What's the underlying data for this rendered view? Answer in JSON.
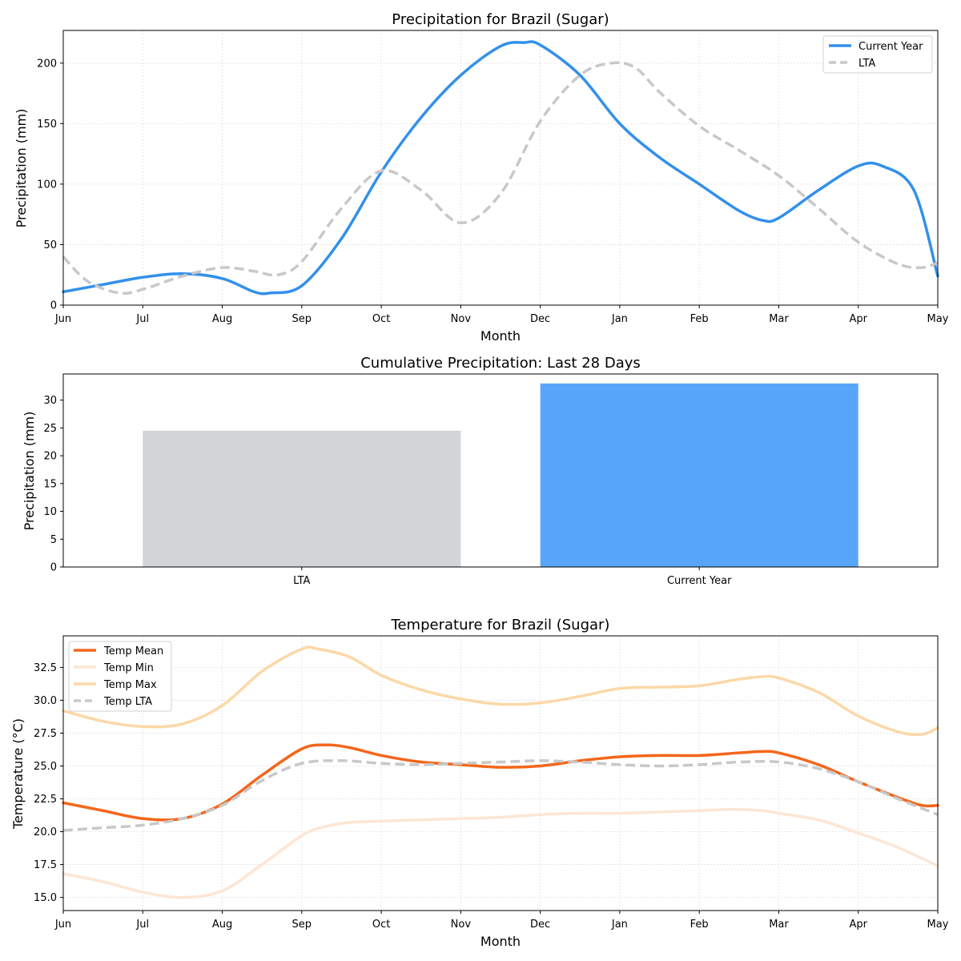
{
  "chart_data": [
    {
      "type": "line",
      "title": "Precipitation for Brazil (Sugar)",
      "xlabel": "Month",
      "ylabel": "Precipitation (mm)",
      "x_ticks": [
        "Jun",
        "Jul",
        "Aug",
        "Sep",
        "Oct",
        "Nov",
        "Dec",
        "Jan",
        "Feb",
        "Mar",
        "Apr",
        "May"
      ],
      "ylim": [
        0,
        227
      ],
      "yticks": [
        0,
        50,
        100,
        150,
        200
      ],
      "grid": true,
      "legend_position": "top-right",
      "series": [
        {
          "name": "Current Year",
          "color": "#3390ea",
          "style": "solid",
          "points": [
            [
              0,
              11
            ],
            [
              0.5,
              17
            ],
            [
              1,
              23
            ],
            [
              1.5,
              26
            ],
            [
              2,
              22
            ],
            [
              2.4,
              11
            ],
            [
              2.6,
              10
            ],
            [
              3,
              16
            ],
            [
              3.5,
              55
            ],
            [
              4,
              110
            ],
            [
              4.5,
              155
            ],
            [
              5,
              190
            ],
            [
              5.5,
              214
            ],
            [
              5.8,
              217
            ],
            [
              6,
              215
            ],
            [
              6.5,
              190
            ],
            [
              7,
              150
            ],
            [
              7.5,
              122
            ],
            [
              8,
              100
            ],
            [
              8.5,
              78
            ],
            [
              8.8,
              70
            ],
            [
              9,
              72
            ],
            [
              9.5,
              95
            ],
            [
              10,
              115
            ],
            [
              10.3,
              115
            ],
            [
              10.7,
              95
            ],
            [
              11,
              24
            ]
          ]
        },
        {
          "name": "LTA",
          "color": "#c8c8c8",
          "style": "dashed",
          "points": [
            [
              0,
              40
            ],
            [
              0.3,
              20
            ],
            [
              0.7,
              10
            ],
            [
              1,
              13
            ],
            [
              1.5,
              24
            ],
            [
              2,
              31
            ],
            [
              2.4,
              28
            ],
            [
              2.7,
              25
            ],
            [
              3,
              36
            ],
            [
              3.5,
              80
            ],
            [
              4,
              111
            ],
            [
              4.5,
              95
            ],
            [
              5,
              68
            ],
            [
              5.5,
              92
            ],
            [
              6,
              152
            ],
            [
              6.5,
              190
            ],
            [
              6.9,
              200
            ],
            [
              7.2,
              196
            ],
            [
              7.5,
              176
            ],
            [
              8,
              148
            ],
            [
              8.5,
              128
            ],
            [
              9,
              107
            ],
            [
              9.5,
              80
            ],
            [
              10,
              52
            ],
            [
              10.5,
              34
            ],
            [
              10.8,
              31
            ],
            [
              11,
              35
            ]
          ]
        }
      ]
    },
    {
      "type": "bar",
      "title": "Cumulative Precipitation: Last 28 Days",
      "xlabel": "",
      "ylabel": "Precipitation (mm)",
      "categories": [
        "LTA",
        "Current Year"
      ],
      "values": [
        24.5,
        33.0
      ],
      "colors": [
        "#d1d5d8",
        "#58a6fa"
      ],
      "ylim": [
        0,
        34.7
      ],
      "yticks": [
        0,
        5,
        10,
        15,
        20,
        25,
        30
      ],
      "grid": false
    },
    {
      "type": "line",
      "title": "Temperature for Brazil (Sugar)",
      "xlabel": "Month",
      "ylabel": "Temperature (°C)",
      "x_ticks": [
        "Jun",
        "Jul",
        "Aug",
        "Sep",
        "Oct",
        "Nov",
        "Dec",
        "Jan",
        "Feb",
        "Mar",
        "Apr",
        "May"
      ],
      "ylim": [
        14.0,
        34.9
      ],
      "yticks": [
        15.0,
        17.5,
        20.0,
        22.5,
        25.0,
        27.5,
        30.0,
        32.5
      ],
      "ytick_labels": [
        "15.0",
        "17.5",
        "20.0",
        "22.5",
        "25.0",
        "27.5",
        "30.0",
        "32.5"
      ],
      "grid": true,
      "legend_position": "top-left",
      "series": [
        {
          "name": "Temp Mean",
          "color": "#f4661b",
          "style": "solid",
          "points": [
            [
              0,
              22.2
            ],
            [
              0.5,
              21.6
            ],
            [
              1,
              21.0
            ],
            [
              1.5,
              21.0
            ],
            [
              2,
              22.1
            ],
            [
              2.5,
              24.3
            ],
            [
              3,
              26.3
            ],
            [
              3.3,
              26.6
            ],
            [
              3.6,
              26.4
            ],
            [
              4,
              25.8
            ],
            [
              4.5,
              25.3
            ],
            [
              5,
              25.1
            ],
            [
              5.5,
              24.9
            ],
            [
              6,
              25.0
            ],
            [
              6.5,
              25.4
            ],
            [
              7,
              25.7
            ],
            [
              7.5,
              25.8
            ],
            [
              8,
              25.8
            ],
            [
              8.5,
              26.0
            ],
            [
              8.8,
              26.1
            ],
            [
              9,
              26.0
            ],
            [
              9.5,
              25.1
            ],
            [
              10,
              23.8
            ],
            [
              10.5,
              22.6
            ],
            [
              10.8,
              22.0
            ],
            [
              11,
              22.0
            ]
          ]
        },
        {
          "name": "Temp Min",
          "color": "#fde6d3",
          "style": "solid",
          "points": [
            [
              0,
              16.8
            ],
            [
              0.5,
              16.2
            ],
            [
              1,
              15.4
            ],
            [
              1.5,
              15.0
            ],
            [
              2,
              15.5
            ],
            [
              2.5,
              17.5
            ],
            [
              3,
              19.7
            ],
            [
              3.3,
              20.4
            ],
            [
              3.6,
              20.7
            ],
            [
              4,
              20.8
            ],
            [
              4.5,
              20.9
            ],
            [
              5,
              21.0
            ],
            [
              5.5,
              21.1
            ],
            [
              6,
              21.3
            ],
            [
              6.5,
              21.4
            ],
            [
              7,
              21.4
            ],
            [
              7.5,
              21.5
            ],
            [
              8,
              21.6
            ],
            [
              8.4,
              21.7
            ],
            [
              8.8,
              21.6
            ],
            [
              9,
              21.4
            ],
            [
              9.5,
              20.9
            ],
            [
              10,
              19.9
            ],
            [
              10.5,
              18.8
            ],
            [
              11,
              17.4
            ]
          ]
        },
        {
          "name": "Temp Max",
          "color": "#fcd8a7",
          "style": "solid",
          "points": [
            [
              0,
              29.2
            ],
            [
              0.5,
              28.4
            ],
            [
              1,
              28.0
            ],
            [
              1.5,
              28.2
            ],
            [
              2,
              29.6
            ],
            [
              2.5,
              32.2
            ],
            [
              3,
              33.9
            ],
            [
              3.2,
              33.9
            ],
            [
              3.6,
              33.3
            ],
            [
              4,
              31.9
            ],
            [
              4.5,
              30.8
            ],
            [
              5,
              30.1
            ],
            [
              5.5,
              29.7
            ],
            [
              6,
              29.8
            ],
            [
              6.5,
              30.3
            ],
            [
              7,
              30.9
            ],
            [
              7.5,
              31.0
            ],
            [
              8,
              31.1
            ],
            [
              8.5,
              31.6
            ],
            [
              8.8,
              31.8
            ],
            [
              9,
              31.7
            ],
            [
              9.5,
              30.6
            ],
            [
              10,
              28.8
            ],
            [
              10.5,
              27.6
            ],
            [
              10.8,
              27.4
            ],
            [
              11,
              27.9
            ]
          ]
        },
        {
          "name": "Temp LTA",
          "color": "#c8c8c8",
          "style": "dashed",
          "points": [
            [
              0,
              20.1
            ],
            [
              0.5,
              20.3
            ],
            [
              1,
              20.5
            ],
            [
              1.5,
              21.0
            ],
            [
              2,
              22.0
            ],
            [
              2.5,
              23.9
            ],
            [
              3,
              25.2
            ],
            [
              3.5,
              25.4
            ],
            [
              4,
              25.2
            ],
            [
              4.5,
              25.1
            ],
            [
              5,
              25.2
            ],
            [
              5.5,
              25.3
            ],
            [
              6,
              25.4
            ],
            [
              6.5,
              25.3
            ],
            [
              7,
              25.1
            ],
            [
              7.5,
              25.0
            ],
            [
              8,
              25.1
            ],
            [
              8.5,
              25.3
            ],
            [
              9,
              25.3
            ],
            [
              9.5,
              24.8
            ],
            [
              10,
              23.8
            ],
            [
              10.5,
              22.5
            ],
            [
              11,
              21.3
            ]
          ]
        }
      ]
    }
  ]
}
